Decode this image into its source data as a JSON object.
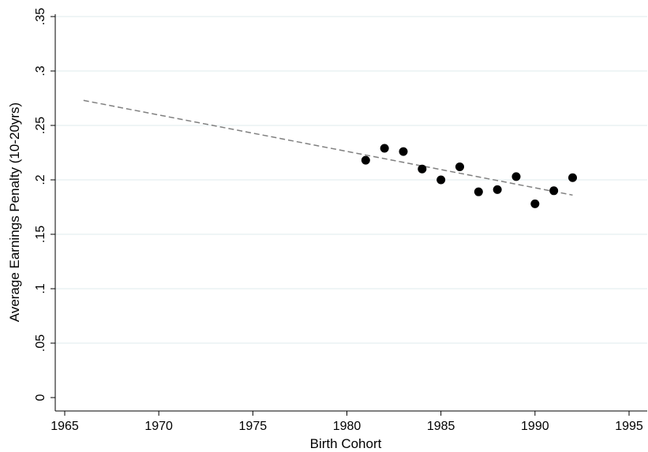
{
  "chart_data": {
    "type": "scatter",
    "title": "",
    "xlabel": "Birth Cohort",
    "ylabel": "Average Earnings Penalty (10-20yrs)",
    "xlim": [
      1965,
      1995
    ],
    "ylim": [
      0,
      0.35
    ],
    "x_ticks": [
      1965,
      1970,
      1975,
      1980,
      1985,
      1990,
      1995
    ],
    "y_ticks": [
      0,
      0.05,
      0.1,
      0.15,
      0.2,
      0.25,
      0.3,
      0.35
    ],
    "x_tick_labels": [
      "1965",
      "1970",
      "1975",
      "1980",
      "1985",
      "1990",
      "1995"
    ],
    "y_tick_labels": [
      "0",
      ".05",
      ".1",
      ".15",
      ".2",
      ".25",
      ".3",
      ".35"
    ],
    "grid": true,
    "legend": "none",
    "points": {
      "x": [
        1981,
        1982,
        1983,
        1984,
        1985,
        1986,
        1987,
        1988,
        1989,
        1990,
        1991,
        1992
      ],
      "y": [
        0.218,
        0.229,
        0.226,
        0.21,
        0.2,
        0.212,
        0.189,
        0.191,
        0.203,
        0.178,
        0.19,
        0.202
      ],
      "color": "#000000"
    },
    "fit_line": {
      "x": [
        1966,
        1992
      ],
      "y": [
        0.273,
        0.186
      ],
      "color": "#808080",
      "style": "dashed"
    }
  }
}
